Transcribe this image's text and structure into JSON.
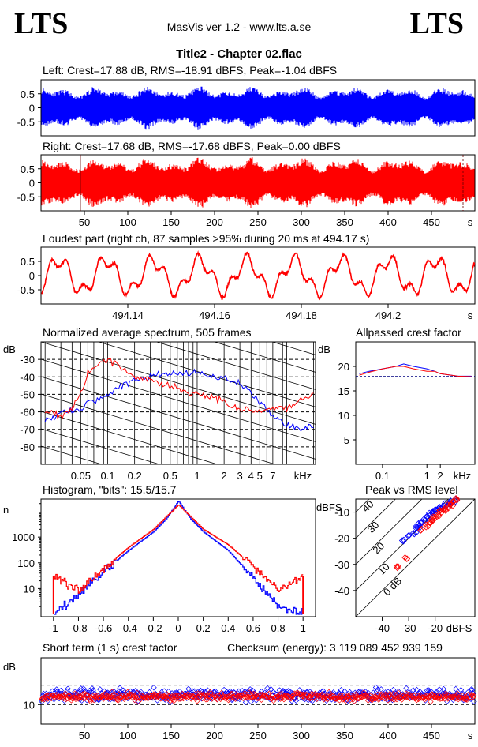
{
  "header": {
    "logo_left": "LTS",
    "logo_right": "LTS",
    "app": "MasVis ver 1.2 - www.lts.a.se",
    "file_title": "Title2 - Chapter 02.flac"
  },
  "colors": {
    "left": "#0000ff",
    "right": "#ff0000",
    "grid": "#000000",
    "axis": "#000000"
  },
  "panels": {
    "left_wave": {
      "title": "Left: Crest=17.88 dB, RMS=-18.91 dBFS, Peak=-1.04 dBFS"
    },
    "right_wave": {
      "title": "Right: Crest=17.68 dB, RMS=-17.68 dBFS, Peak=0.00 dBFS"
    },
    "loudest": {
      "title": "Loudest part (right ch, 87 samples >95% during 20 ms at 494.17 s)"
    },
    "spectrum": {
      "title": "Normalized average spectrum, 505 frames"
    },
    "allpass": {
      "title": "Allpassed crest factor"
    },
    "histogram": {
      "title": "Histogram, \"bits\": 15.5/15.7"
    },
    "peak_rms": {
      "title": "Peak vs RMS level"
    },
    "short_crest": {
      "title": "Short term (1 s) crest factor",
      "checksum": "Checksum (energy):  3 119 089 452 939 159"
    }
  },
  "chart_data": [
    {
      "id": "left_wave",
      "type": "line",
      "series": [
        {
          "color": "#0000ff"
        }
      ],
      "ylim": [
        -1,
        1
      ],
      "yticks": [
        "0.5",
        "0",
        "-0.5"
      ],
      "xlim": [
        0,
        500
      ]
    },
    {
      "id": "right_wave",
      "type": "line",
      "series": [
        {
          "color": "#ff0000"
        }
      ],
      "ylim": [
        -1,
        1
      ],
      "yticks": [
        "0.5",
        "0",
        "-0.5"
      ],
      "xlim": [
        0,
        500
      ],
      "xticks": [
        "50",
        "100",
        "150",
        "200",
        "250",
        "300",
        "350",
        "400",
        "450"
      ],
      "xunit": "s"
    },
    {
      "id": "loudest",
      "type": "line",
      "series": [
        {
          "color": "#ff0000"
        }
      ],
      "ylim": [
        -1,
        1
      ],
      "yticks": [
        "0.5",
        "0",
        "-0.5"
      ],
      "xlim": [
        494.12,
        494.22
      ],
      "xticks": [
        "494.14",
        "494.16",
        "494.18",
        "494.2"
      ],
      "xunit": "s"
    },
    {
      "id": "spectrum",
      "type": "line",
      "ylabel": "dB",
      "xunit": "kHz",
      "xscale": "log",
      "ylim": [
        -90,
        -20
      ],
      "yticks": [
        "-30",
        "-40",
        "-50",
        "-60",
        "-70",
        "-80"
      ],
      "xticks": [
        "0.05",
        "0.1",
        "0.2",
        "0.5",
        "1",
        "2",
        "3",
        "4",
        "5",
        "7"
      ],
      "series": [
        {
          "color": "#0000ff",
          "x": [
            0.02,
            0.03,
            0.04,
            0.05,
            0.06,
            0.08,
            0.1,
            0.15,
            0.2,
            0.3,
            0.5,
            0.7,
            1,
            1.5,
            2,
            3,
            4,
            5,
            7,
            10,
            15,
            20
          ],
          "y": [
            -65,
            -60,
            -60,
            -58,
            -55,
            -53,
            -50,
            -45,
            -42,
            -40,
            -38,
            -38,
            -38,
            -40,
            -40,
            -45,
            -48,
            -55,
            -62,
            -68,
            -70,
            -68
          ]
        },
        {
          "color": "#ff0000",
          "x": [
            0.02,
            0.03,
            0.04,
            0.05,
            0.06,
            0.08,
            0.1,
            0.15,
            0.2,
            0.3,
            0.5,
            0.7,
            1,
            1.5,
            2,
            3,
            4,
            5,
            7,
            10,
            15,
            20
          ],
          "y": [
            -60,
            -62,
            -58,
            -50,
            -38,
            -32,
            -30,
            -35,
            -40,
            -42,
            -45,
            -48,
            -50,
            -52,
            -55,
            -58,
            -60,
            -60,
            -58,
            -58,
            -53,
            -50
          ]
        }
      ]
    },
    {
      "id": "allpass",
      "type": "line",
      "ylabel": "dB",
      "xunit": "kHz",
      "xscale": "log",
      "ylim": [
        0,
        25
      ],
      "yticks": [
        "20",
        "15",
        "10",
        "5"
      ],
      "xticks": [
        "0.1",
        "1",
        "2"
      ],
      "reference_line": 17.9,
      "series": [
        {
          "color": "#0000ff",
          "x": [
            0.03,
            0.05,
            0.1,
            0.2,
            0.3,
            0.5,
            1,
            1.5,
            2,
            5,
            10
          ],
          "y": [
            18.5,
            19,
            19.5,
            20,
            20.5,
            20,
            19.5,
            19,
            18.5,
            18,
            18
          ]
        },
        {
          "color": "#ff0000",
          "x": [
            0.03,
            0.05,
            0.1,
            0.2,
            0.3,
            0.5,
            1,
            1.5,
            2,
            5,
            10
          ],
          "y": [
            18.2,
            18.8,
            19.5,
            20,
            20,
            19.5,
            19,
            19,
            18.5,
            18,
            17.9
          ]
        }
      ]
    },
    {
      "id": "histogram",
      "type": "line",
      "ylabel": "n",
      "yscale": "log",
      "yticks": [
        "1000",
        "100",
        "10"
      ],
      "xlim": [
        -1.1,
        1.1
      ],
      "xticks": [
        "-1",
        "-0.8",
        "-0.6",
        "-0.4",
        "-0.2",
        "0",
        "0.2",
        "0.4",
        "0.6",
        "0.8",
        "1"
      ],
      "series": [
        {
          "color": "#0000ff",
          "x": [
            -1,
            -0.8,
            -0.6,
            -0.4,
            -0.2,
            -0.1,
            0,
            0.1,
            0.2,
            0.4,
            0.6,
            0.8,
            1
          ],
          "y": [
            1,
            6,
            45,
            300,
            1600,
            5000,
            25000,
            5000,
            1600,
            300,
            25,
            2,
            1
          ]
        },
        {
          "color": "#ff0000",
          "x": [
            -1,
            -0.8,
            -0.6,
            -0.4,
            -0.2,
            -0.1,
            0,
            0.1,
            0.2,
            0.4,
            0.6,
            0.8,
            1
          ],
          "y": [
            30,
            8,
            60,
            400,
            2000,
            6000,
            18000,
            6000,
            2000,
            500,
            70,
            8,
            30
          ]
        }
      ]
    },
    {
      "id": "peak_rms",
      "type": "scatter",
      "ylabel": "dBFS",
      "xunit": "dBFS",
      "xlim": [
        -50,
        -5
      ],
      "ylim": [
        -50,
        -5
      ],
      "yticks": [
        "-10",
        "-20",
        "-30",
        "-40"
      ],
      "xticks": [
        "-40",
        "-30",
        "-20"
      ],
      "crest_lines": [
        "40",
        "30",
        "20",
        "10",
        "0 dB"
      ],
      "series": [
        {
          "color": "#0000ff",
          "x": [
            -32,
            -30,
            -28,
            -27,
            -26,
            -25,
            -24,
            -23,
            -22,
            -21,
            -20,
            -19,
            -18,
            -17,
            -16,
            -15,
            -14,
            -12
          ],
          "y": [
            -21,
            -19,
            -18,
            -16,
            -15,
            -14,
            -13,
            -12,
            -11,
            -10,
            -10,
            -9,
            -8,
            -8,
            -7,
            -7,
            -6,
            -5
          ]
        },
        {
          "color": "#ff0000",
          "x": [
            -34,
            -31,
            -25,
            -23,
            -22,
            -21,
            -20,
            -19,
            -18,
            -17,
            -16,
            -15,
            -14,
            -13,
            -12
          ],
          "y": [
            -31,
            -28,
            -17,
            -15,
            -14,
            -13,
            -12,
            -11,
            -10,
            -9,
            -9,
            -8,
            -7,
            -6,
            -5
          ]
        }
      ]
    },
    {
      "id": "short_crest",
      "type": "scatter",
      "ylabel": "dB",
      "yticks": [
        "10"
      ],
      "ylim": [
        5,
        22
      ],
      "xlim": [
        0,
        500
      ],
      "xticks": [
        "50",
        "100",
        "150",
        "200",
        "250",
        "300",
        "350",
        "400",
        "450"
      ],
      "xunit": "s",
      "series": [
        {
          "color": "#0000ff"
        },
        {
          "color": "#ff0000"
        }
      ]
    }
  ]
}
